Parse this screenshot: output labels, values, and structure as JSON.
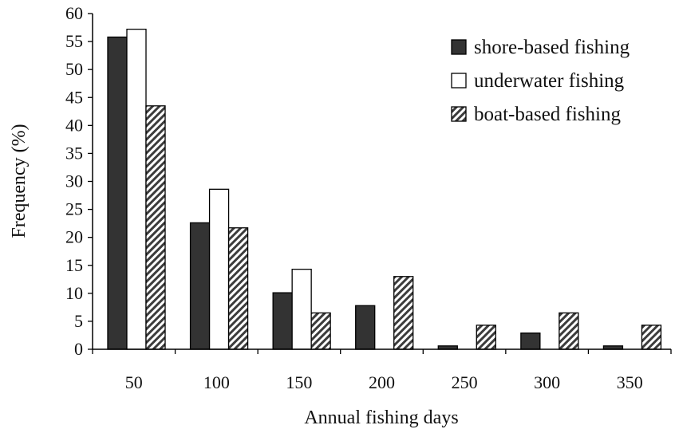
{
  "chart_data": {
    "type": "bar",
    "title": "",
    "xlabel": "Annual fishing days",
    "ylabel": "Frequency (%)",
    "ylim": [
      0,
      60
    ],
    "yticks": [
      "0",
      "5",
      "10",
      "15",
      "20",
      "25",
      "30",
      "35",
      "40",
      "45",
      "50",
      "55",
      "60"
    ],
    "categories": [
      "50",
      "100",
      "150",
      "200",
      "250",
      "300",
      "350"
    ],
    "grid": false,
    "legend_position": "top-right",
    "series": [
      {
        "name": "shore-based fishing",
        "style": "solid",
        "color": "#333333",
        "values": [
          55.8,
          22.6,
          10.1,
          7.8,
          0.6,
          2.9,
          0.6
        ]
      },
      {
        "name": "underwater fishing",
        "style": "outline",
        "color": "#ffffff",
        "values": [
          57.2,
          28.6,
          14.3,
          0,
          0,
          0,
          0
        ]
      },
      {
        "name": "boat-based fishing",
        "style": "hatched",
        "color": "#555555",
        "values": [
          43.5,
          21.7,
          6.5,
          13.0,
          4.3,
          6.5,
          4.3
        ]
      }
    ]
  }
}
